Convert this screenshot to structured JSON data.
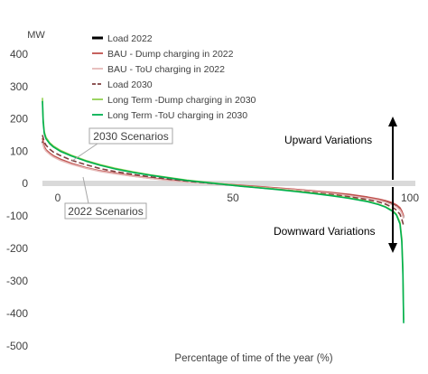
{
  "chart_data": {
    "type": "line",
    "ylabel": "MW",
    "xlabel": "Percentage of time of the year (%)",
    "xlim": [
      0,
      100
    ],
    "ylim": [
      -500,
      400
    ],
    "y_ticks": [
      400,
      300,
      200,
      100,
      0,
      -100,
      -200,
      -300,
      -400,
      -500
    ],
    "x_ticks": [
      0,
      50,
      100
    ],
    "legend_position": "top-center",
    "annotations": {
      "upward": "Upward Variations",
      "downward": "Downward Variations",
      "scenario_2030": "2030 Scenarios",
      "scenario_2022": "2022 Scenarios"
    },
    "series": [
      {
        "name": "Load 2022",
        "color": "#000000",
        "style": "solid",
        "x": [
          0,
          0.5,
          1,
          2,
          3,
          5,
          8,
          12,
          16,
          20,
          25,
          30,
          35,
          40,
          45,
          50,
          55,
          60,
          65,
          70,
          75,
          80,
          85,
          90,
          93,
          95,
          97,
          98,
          99,
          99.5,
          100
        ],
        "y": [
          130,
          110,
          102,
          92,
          84,
          73,
          61,
          48,
          38,
          31,
          23,
          16,
          10,
          5,
          1,
          -3,
          -7,
          -11,
          -15,
          -19,
          -24,
          -30,
          -36,
          -44,
          -50,
          -56,
          -64,
          -70,
          -80,
          -90,
          -105
        ]
      },
      {
        "name": "BAU - Dump charging in 2022",
        "color": "#c0504d",
        "style": "solid",
        "x": [
          0,
          0.5,
          1,
          2,
          3,
          5,
          8,
          12,
          16,
          20,
          25,
          30,
          35,
          40,
          45,
          50,
          55,
          60,
          65,
          70,
          75,
          80,
          85,
          90,
          93,
          95,
          97,
          98,
          99,
          99.5,
          100
        ],
        "y": [
          140,
          114,
          104,
          94,
          86,
          75,
          62,
          49,
          39,
          32,
          24,
          17,
          11,
          6,
          2,
          -2,
          -6,
          -10,
          -14,
          -18,
          -23,
          -28,
          -34,
          -42,
          -48,
          -53,
          -60,
          -66,
          -75,
          -85,
          -100
        ]
      },
      {
        "name": "BAU - ToU charging in 2022",
        "color": "#e6b9b8",
        "style": "solid",
        "x": [
          0,
          0.5,
          1,
          2,
          3,
          5,
          8,
          12,
          16,
          20,
          25,
          30,
          35,
          40,
          45,
          50,
          55,
          60,
          65,
          70,
          75,
          80,
          85,
          90,
          93,
          95,
          97,
          98,
          99,
          99.5,
          100
        ],
        "y": [
          125,
          108,
          100,
          90,
          82,
          71,
          59,
          47,
          37,
          30,
          22,
          15,
          9,
          4,
          0,
          -4,
          -8,
          -12,
          -16,
          -20,
          -25,
          -31,
          -38,
          -46,
          -52,
          -58,
          -66,
          -72,
          -82,
          -92,
          -108
        ]
      },
      {
        "name": "Load 2030",
        "color": "#7f3f3f",
        "style": "dashed",
        "x": [
          0,
          0.5,
          1,
          2,
          3,
          5,
          8,
          12,
          16,
          20,
          25,
          30,
          35,
          40,
          45,
          50,
          55,
          60,
          65,
          70,
          75,
          80,
          85,
          90,
          93,
          95,
          97,
          98,
          99,
          99.5,
          100
        ],
        "y": [
          150,
          128,
          118,
          106,
          97,
          86,
          72,
          58,
          46,
          37,
          28,
          20,
          13,
          7,
          2,
          -3,
          -8,
          -13,
          -18,
          -23,
          -28,
          -34,
          -41,
          -50,
          -57,
          -64,
          -74,
          -82,
          -95,
          -110,
          -130
        ]
      },
      {
        "name": "Long Term -Dump charging in 2030",
        "color": "#92d050",
        "style": "solid",
        "x": [
          0,
          0.2,
          0.5,
          1,
          2,
          3,
          5,
          8,
          12,
          16,
          20,
          25,
          30,
          35,
          40,
          45,
          50,
          55,
          60,
          65,
          70,
          75,
          80,
          85,
          90,
          93,
          95,
          97,
          98,
          99,
          99.5,
          99.8,
          100
        ],
        "y": [
          265,
          200,
          160,
          142,
          126,
          116,
          102,
          87,
          71,
          58,
          47,
          36,
          26,
          18,
          10,
          4,
          -2,
          -8,
          -13,
          -18,
          -24,
          -30,
          -37,
          -45,
          -55,
          -64,
          -72,
          -84,
          -95,
          -120,
          -170,
          -260,
          -420
        ]
      },
      {
        "name": "Long Term -ToU charging in 2030",
        "color": "#00b050",
        "style": "solid",
        "x": [
          0,
          0.2,
          0.5,
          1,
          2,
          3,
          5,
          8,
          12,
          16,
          20,
          25,
          30,
          35,
          40,
          45,
          50,
          55,
          60,
          65,
          70,
          75,
          80,
          85,
          90,
          93,
          95,
          97,
          98,
          99,
          99.5,
          99.8,
          100
        ],
        "y": [
          255,
          190,
          155,
          138,
          123,
          113,
          99,
          85,
          69,
          56,
          45,
          34,
          25,
          17,
          9,
          3,
          -3,
          -9,
          -14,
          -19,
          -25,
          -31,
          -38,
          -46,
          -56,
          -65,
          -73,
          -86,
          -97,
          -125,
          -180,
          -280,
          -430
        ]
      }
    ]
  }
}
